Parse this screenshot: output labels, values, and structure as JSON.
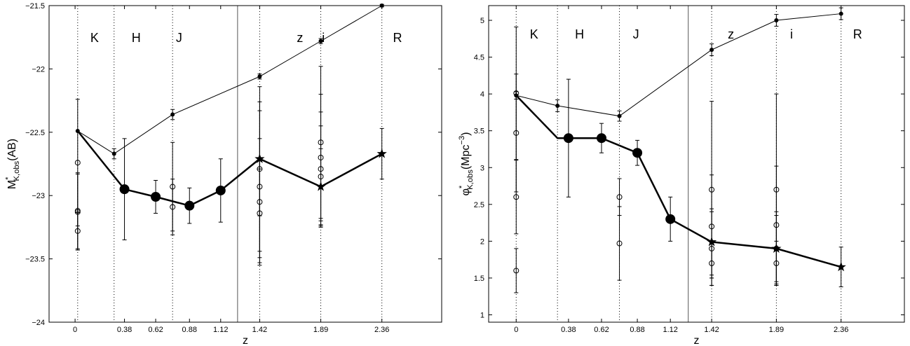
{
  "chart_data": [
    {
      "type": "line",
      "xlabel": "z",
      "ylabel": "M*K,obs(AB)",
      "ylabel_parts": {
        "main": "M",
        "sup": "*",
        "sub": "K,obs",
        "rest": "(AB)"
      },
      "xlim": [
        -0.2,
        2.82
      ],
      "ylim": [
        -24,
        -21.5
      ],
      "x_ticks": [
        0,
        0.38,
        0.62,
        0.88,
        1.12,
        1.42,
        1.89,
        2.36
      ],
      "x_tick_labels": [
        "0",
        "0.38",
        "0.62",
        "0.88",
        "1.12",
        "1.42",
        "1.89",
        "2.36"
      ],
      "y_ticks": [
        -24,
        -23.5,
        -23,
        -22.5,
        -22,
        -21.5
      ],
      "y_tick_labels": [
        "−24",
        "−23.5",
        "−23",
        "−22.5",
        "−22",
        "−21.5"
      ],
      "grid": false,
      "vlines_dotted": [
        0.02,
        0.3,
        0.75,
        1.42,
        1.89,
        2.36
      ],
      "vline_solid": 1.25,
      "bands": [
        {
          "label": "K",
          "x": 0.15
        },
        {
          "label": "H",
          "x": 0.47
        },
        {
          "label": "J",
          "x": 0.8
        },
        {
          "label": "z",
          "x": 1.73
        },
        {
          "label": "i",
          "x": 1.91
        },
        {
          "label": "R",
          "x": 2.48
        }
      ],
      "series": [
        {
          "style": "thin-dot",
          "x": [
            0.02,
            0.3,
            0.75,
            1.42,
            1.89,
            2.36
          ],
          "y": [
            -22.49,
            -22.67,
            -22.36,
            -22.06,
            -21.78,
            -21.5
          ],
          "err": [
            0.0,
            0.04,
            0.04,
            0.02,
            0.02,
            0.01
          ]
        },
        {
          "style": "bold",
          "x": [
            0.02,
            0.38,
            0.62,
            0.88,
            1.12,
            1.42,
            1.89,
            2.36
          ],
          "y": [
            -22.49,
            -22.95,
            -23.01,
            -23.08,
            -22.96,
            -22.71,
            -22.93,
            -22.67
          ],
          "markers": [
            "none",
            "circle",
            "circle",
            "circle",
            "circle",
            "star",
            "star",
            "star"
          ],
          "err": [
            0.0,
            0.4,
            0.13,
            0.14,
            0.25,
            0.45,
            0.3,
            0.2
          ]
        },
        {
          "style": "open-circle",
          "x": [
            0.02,
            0.02,
            0.02,
            0.02,
            0.75,
            0.75,
            1.42,
            1.42,
            1.42,
            1.42,
            1.89,
            1.89,
            1.89,
            1.89
          ],
          "y": [
            -22.74,
            -23.12,
            -23.13,
            -23.28,
            -22.93,
            -23.09,
            -22.79,
            -22.93,
            -23.05,
            -23.14,
            -22.58,
            -22.7,
            -22.79,
            -22.85
          ],
          "err": [
            0.5,
            0.3,
            0.3,
            0.15,
            0.35,
            0.22,
            0.65,
            0.6,
            0.5,
            0.35,
            0.6,
            0.5,
            0.45,
            0.4
          ]
        }
      ]
    },
    {
      "type": "line",
      "xlabel": "z",
      "ylabel": "φ*K,obs(Mpc−3)",
      "ylabel_parts": {
        "main": "φ",
        "sup": "*",
        "sub": "K,obs",
        "rest": "(Mpc",
        "rest_sup": "−3",
        "rest_end": ")"
      },
      "xlim": [
        -0.2,
        2.82
      ],
      "ylim": [
        0.9,
        5.2
      ],
      "x_ticks": [
        0,
        0.38,
        0.62,
        0.88,
        1.12,
        1.42,
        1.89,
        2.36
      ],
      "x_tick_labels": [
        "0",
        "0.38",
        "0.62",
        "0.88",
        "1.12",
        "1.42",
        "1.89",
        "2.36"
      ],
      "y_ticks": [
        1,
        1.5,
        2,
        2.5,
        3,
        3.5,
        4,
        4.5,
        5
      ],
      "y_tick_labels": [
        "1",
        "1.5",
        "2",
        "2.5",
        "3",
        "3.5",
        "4",
        "4.5",
        "5"
      ],
      "grid": false,
      "vlines_dotted": [
        0.0,
        0.3,
        0.75,
        1.42,
        1.89,
        2.36
      ],
      "vline_solid": 1.25,
      "bands": [
        {
          "label": "K",
          "x": 0.13
        },
        {
          "label": "H",
          "x": 0.46
        },
        {
          "label": "J",
          "x": 0.87
        },
        {
          "label": "z",
          "x": 1.56
        },
        {
          "label": "i",
          "x": 2.0
        },
        {
          "label": "R",
          "x": 2.48
        }
      ],
      "series": [
        {
          "style": "thin-dot",
          "x": [
            0.0,
            0.3,
            0.75,
            1.42,
            1.89,
            2.36
          ],
          "y": [
            3.98,
            3.84,
            3.7,
            4.6,
            5.0,
            5.09
          ],
          "err": [
            0.05,
            0.08,
            0.07,
            0.08,
            0.08,
            0.08
          ]
        },
        {
          "style": "bold",
          "x": [
            0.0,
            0.3,
            0.38,
            0.62,
            0.88,
            1.12,
            1.42,
            1.89,
            2.36
          ],
          "y": [
            3.98,
            3.4,
            3.4,
            3.4,
            3.2,
            2.3,
            1.99,
            1.9,
            1.65
          ],
          "markers": [
            "none",
            "none",
            "circle",
            "circle",
            "circle",
            "circle",
            "star",
            "star",
            "star"
          ],
          "err": [
            0.0,
            0.0,
            0.8,
            0.2,
            0.17,
            0.3,
            0.45,
            0.5,
            0.27
          ]
        },
        {
          "style": "open-circle",
          "x": [
            0.0,
            0.0,
            0.0,
            0.0,
            0.75,
            0.75,
            1.42,
            1.42,
            1.42,
            1.42,
            1.89,
            1.89,
            1.89,
            1.89
          ],
          "y": [
            4.01,
            3.47,
            2.6,
            1.6,
            2.6,
            1.97,
            2.7,
            2.2,
            1.9,
            1.7,
            2.7,
            2.22,
            1.9,
            1.7
          ],
          "err": [
            0.9,
            0.8,
            0.5,
            0.3,
            0.25,
            0.5,
            1.2,
            0.7,
            0.5,
            0.3,
            1.3,
            0.8,
            0.45,
            0.3
          ]
        }
      ]
    }
  ]
}
